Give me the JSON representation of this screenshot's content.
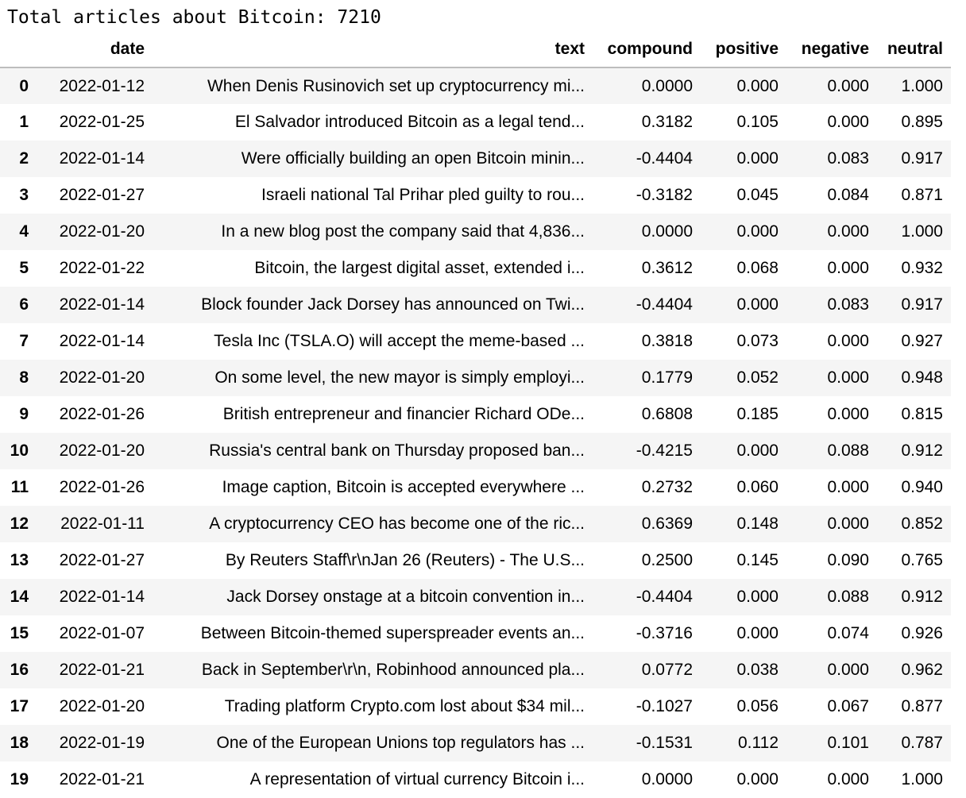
{
  "output": {
    "summary_line": "Total articles about Bitcoin: 7210"
  },
  "dataframe": {
    "columns": [
      "",
      "date",
      "text",
      "compound",
      "positive",
      "negative",
      "neutral"
    ],
    "rows": [
      {
        "index": "0",
        "date": "2022-01-12",
        "text": "When Denis Rusinovich set up cryptocurrency mi...",
        "compound": "0.0000",
        "positive": "0.000",
        "negative": "0.000",
        "neutral": "1.000"
      },
      {
        "index": "1",
        "date": "2022-01-25",
        "text": "El Salvador introduced Bitcoin as a legal tend...",
        "compound": "0.3182",
        "positive": "0.105",
        "negative": "0.000",
        "neutral": "0.895"
      },
      {
        "index": "2",
        "date": "2022-01-14",
        "text": "Were officially building an open Bitcoin minin...",
        "compound": "-0.4404",
        "positive": "0.000",
        "negative": "0.083",
        "neutral": "0.917"
      },
      {
        "index": "3",
        "date": "2022-01-27",
        "text": "Israeli national Tal Prihar pled guilty to rou...",
        "compound": "-0.3182",
        "positive": "0.045",
        "negative": "0.084",
        "neutral": "0.871"
      },
      {
        "index": "4",
        "date": "2022-01-20",
        "text": "In a new blog post the company said that 4,836...",
        "compound": "0.0000",
        "positive": "0.000",
        "negative": "0.000",
        "neutral": "1.000"
      },
      {
        "index": "5",
        "date": "2022-01-22",
        "text": "Bitcoin, the largest digital asset, extended i...",
        "compound": "0.3612",
        "positive": "0.068",
        "negative": "0.000",
        "neutral": "0.932"
      },
      {
        "index": "6",
        "date": "2022-01-14",
        "text": "Block founder Jack Dorsey has announced on Twi...",
        "compound": "-0.4404",
        "positive": "0.000",
        "negative": "0.083",
        "neutral": "0.917"
      },
      {
        "index": "7",
        "date": "2022-01-14",
        "text": "Tesla Inc (TSLA.O) will accept the meme-based ...",
        "compound": "0.3818",
        "positive": "0.073",
        "negative": "0.000",
        "neutral": "0.927"
      },
      {
        "index": "8",
        "date": "2022-01-20",
        "text": "On some level, the new mayor is simply employi...",
        "compound": "0.1779",
        "positive": "0.052",
        "negative": "0.000",
        "neutral": "0.948"
      },
      {
        "index": "9",
        "date": "2022-01-26",
        "text": "British entrepreneur and financier Richard ODe...",
        "compound": "0.6808",
        "positive": "0.185",
        "negative": "0.000",
        "neutral": "0.815"
      },
      {
        "index": "10",
        "date": "2022-01-20",
        "text": "Russia's central bank on Thursday proposed ban...",
        "compound": "-0.4215",
        "positive": "0.000",
        "negative": "0.088",
        "neutral": "0.912"
      },
      {
        "index": "11",
        "date": "2022-01-26",
        "text": "Image caption, Bitcoin is accepted everywhere ...",
        "compound": "0.2732",
        "positive": "0.060",
        "negative": "0.000",
        "neutral": "0.940"
      },
      {
        "index": "12",
        "date": "2022-01-11",
        "text": "A cryptocurrency CEO has become one of the ric...",
        "compound": "0.6369",
        "positive": "0.148",
        "negative": "0.000",
        "neutral": "0.852"
      },
      {
        "index": "13",
        "date": "2022-01-27",
        "text": "By Reuters Staff\\r\\nJan 26 (Reuters) - The U.S...",
        "compound": "0.2500",
        "positive": "0.145",
        "negative": "0.090",
        "neutral": "0.765"
      },
      {
        "index": "14",
        "date": "2022-01-14",
        "text": "Jack Dorsey onstage at a bitcoin convention in...",
        "compound": "-0.4404",
        "positive": "0.000",
        "negative": "0.088",
        "neutral": "0.912"
      },
      {
        "index": "15",
        "date": "2022-01-07",
        "text": "Between Bitcoin-themed superspreader events an...",
        "compound": "-0.3716",
        "positive": "0.000",
        "negative": "0.074",
        "neutral": "0.926"
      },
      {
        "index": "16",
        "date": "2022-01-21",
        "text": "Back in September\\r\\n, Robinhood announced pla...",
        "compound": "0.0772",
        "positive": "0.038",
        "negative": "0.000",
        "neutral": "0.962"
      },
      {
        "index": "17",
        "date": "2022-01-20",
        "text": "Trading platform Crypto.com lost about $34 mil...",
        "compound": "-0.1027",
        "positive": "0.056",
        "negative": "0.067",
        "neutral": "0.877"
      },
      {
        "index": "18",
        "date": "2022-01-19",
        "text": "One of the European Unions top regulators has ...",
        "compound": "-0.1531",
        "positive": "0.112",
        "negative": "0.101",
        "neutral": "0.787"
      },
      {
        "index": "19",
        "date": "2022-01-21",
        "text": "A representation of virtual currency Bitcoin i...",
        "compound": "0.0000",
        "positive": "0.000",
        "negative": "0.000",
        "neutral": "1.000"
      }
    ]
  }
}
